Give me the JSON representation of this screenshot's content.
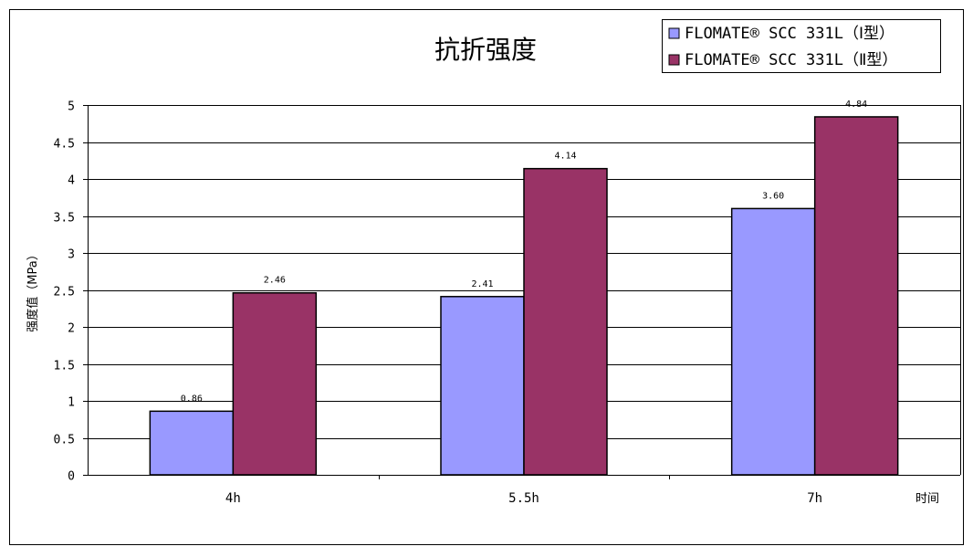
{
  "chart_data": {
    "type": "bar",
    "title": "抗折强度",
    "ylabel": "强度值（MPa）",
    "xlabel": "时间",
    "ylim": [
      0,
      5
    ],
    "yticks": [
      "0",
      "0.5",
      "1",
      "1.5",
      "2",
      "2.5",
      "3",
      "3.5",
      "4",
      "4.5",
      "5"
    ],
    "categories": [
      "4h",
      "5.5h",
      "7h"
    ],
    "grid": true,
    "legend_position": "top-right",
    "series": [
      {
        "name": "FLOMATE® SCC 331L（Ⅰ型）",
        "color": "#9999ff",
        "values": [
          0.86,
          2.41,
          3.6
        ],
        "labels": [
          "0.86",
          "2.41",
          "3.60"
        ]
      },
      {
        "name": "FLOMATE® SCC 331L（Ⅱ型）",
        "color": "#993366",
        "values": [
          2.46,
          4.14,
          4.84
        ],
        "labels": [
          "2.46",
          "4.14",
          "4.84"
        ]
      }
    ]
  }
}
